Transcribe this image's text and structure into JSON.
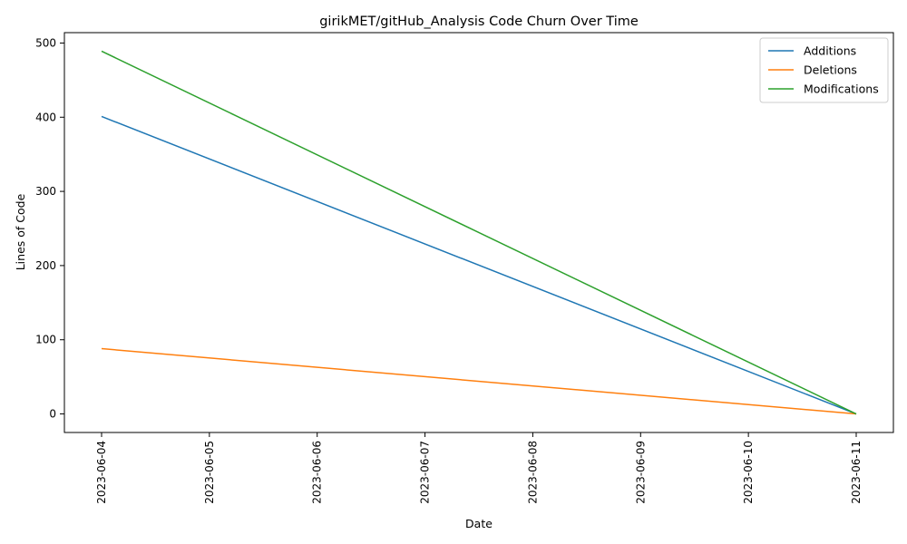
{
  "chart_data": {
    "type": "line",
    "title": "girikMET/gitHub_Analysis Code Churn Over Time",
    "xlabel": "Date",
    "ylabel": "Lines of Code",
    "x": [
      "2023-06-04",
      "2023-06-05",
      "2023-06-06",
      "2023-06-07",
      "2023-06-08",
      "2023-06-09",
      "2023-06-10",
      "2023-06-11"
    ],
    "x_ticks": [
      "2023-06-04",
      "2023-06-05",
      "2023-06-06",
      "2023-06-07",
      "2023-06-08",
      "2023-06-09",
      "2023-06-10",
      "2023-06-11"
    ],
    "y_ticks": [
      "0",
      "100",
      "200",
      "300",
      "400",
      "500"
    ],
    "ylim": [
      -25,
      514
    ],
    "legend_position": "top-right",
    "grid": false,
    "series": [
      {
        "name": "Additions",
        "color": "#1f77b4",
        "points": [
          [
            "2023-06-04",
            401
          ],
          [
            "2023-06-11",
            0
          ]
        ]
      },
      {
        "name": "Deletions",
        "color": "#ff7f0e",
        "points": [
          [
            "2023-06-04",
            88
          ],
          [
            "2023-06-11",
            0
          ]
        ]
      },
      {
        "name": "Modifications",
        "color": "#2ca02c",
        "points": [
          [
            "2023-06-04",
            489
          ],
          [
            "2023-06-11",
            0
          ]
        ]
      }
    ]
  }
}
